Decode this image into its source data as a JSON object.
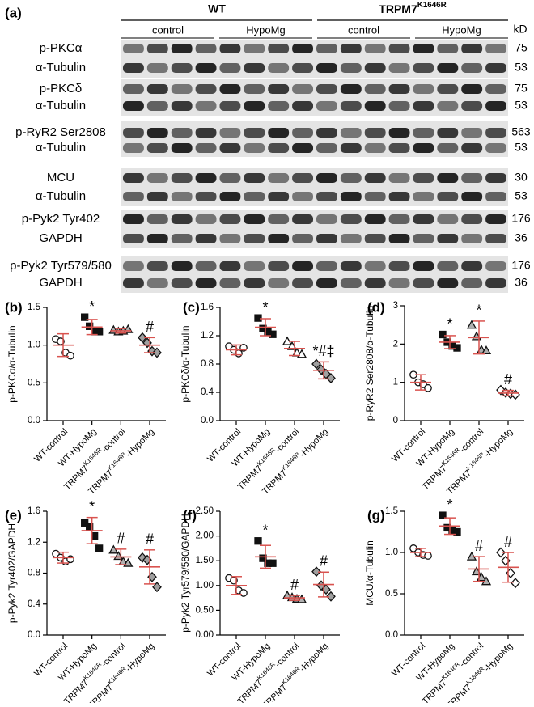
{
  "superscript": "K1646R",
  "blot": {
    "panel": "(a)",
    "unit": "kD",
    "groups": [
      {
        "name": "WT",
        "subgroups": [
          "control",
          "HypoMg"
        ]
      },
      {
        "name": "TRPM7K1646R",
        "subgroups": [
          "control",
          "HypoMg"
        ]
      }
    ],
    "rows": [
      {
        "label": "p-PKCα",
        "kd": 75
      },
      {
        "label": "α-Tubulin",
        "kd": 53
      },
      {
        "label": "p-PKCδ",
        "kd": 75
      },
      {
        "label": "α-Tubulin",
        "kd": 53
      },
      {
        "label": "p-RyR2 Ser2808",
        "kd": 563
      },
      {
        "label": "α-Tubulin",
        "kd": 53
      },
      {
        "label": "MCU",
        "kd": 30
      },
      {
        "label": "α-Tubulin",
        "kd": 53
      },
      {
        "label": "p-Pyk2 Tyr402",
        "kd": 176
      },
      {
        "label": "GAPDH",
        "kd": 36
      },
      {
        "label": "p-Pyk2 Tyr579/580",
        "kd": 176
      },
      {
        "label": "GAPDH",
        "kd": 36
      }
    ]
  },
  "chart_data": [
    {
      "type": "dotplot",
      "panel": "(b)",
      "y_label": "p-PKCα/α-Tubulin",
      "categories": [
        "WT-control",
        "WT-HypoMg",
        "TRPM7K1646R-control",
        "TRPM7K1646R-HypoMg"
      ],
      "means": [
        1.0,
        1.24,
        1.19,
        1.0
      ],
      "errors": [
        0.15,
        0.1,
        0.03,
        0.1
      ],
      "points": [
        [
          1.08,
          1.05,
          0.9,
          0.86
        ],
        [
          1.37,
          1.25,
          1.18,
          1.18
        ],
        [
          1.2,
          1.18,
          1.19,
          1.21
        ],
        [
          1.1,
          1.03,
          0.92,
          0.9
        ]
      ],
      "annotations": [
        null,
        "*",
        null,
        "#"
      ],
      "ylim": [
        0,
        1.5
      ],
      "yticks": [
        {
          "value": 0,
          "label": "0.0"
        },
        {
          "value": 0.5,
          "label": "0.5"
        },
        {
          "value": 1,
          "label": "1.0"
        },
        {
          "value": 1.5,
          "label": "1.5"
        }
      ],
      "markers": [
        "open-circle",
        "square",
        "triangle",
        "diamond"
      ],
      "marker_colors": [
        "#ffffff",
        "#111111",
        "#b0b0b0",
        "#a0a0a0"
      ],
      "error_color": "#d9534f"
    },
    {
      "type": "dotplot",
      "panel": "(c)",
      "y_label": "p-PKCδ/α-Tubulin",
      "categories": [
        "WT-control",
        "WT-HypoMg",
        "TRPM7K1646R-control",
        "TRPM7K1646R-HypoMg"
      ],
      "means": [
        1.0,
        1.32,
        1.02,
        0.71
      ],
      "errors": [
        0.07,
        0.12,
        0.1,
        0.12
      ],
      "points": [
        [
          1.05,
          1.0,
          0.95,
          1.03
        ],
        [
          1.45,
          1.3,
          1.25,
          1.22
        ],
        [
          1.12,
          1.05,
          0.96,
          0.94
        ],
        [
          0.8,
          0.72,
          0.66,
          0.6
        ]
      ],
      "annotations": [
        null,
        "*",
        null,
        "*#‡"
      ],
      "ylim": [
        0,
        1.6
      ],
      "yticks": [
        {
          "value": 0,
          "label": "0.0"
        },
        {
          "value": 0.4,
          "label": "0.4"
        },
        {
          "value": 0.8,
          "label": "0.8"
        },
        {
          "value": 1.2,
          "label": "1.2"
        },
        {
          "value": 1.6,
          "label": "1.6"
        }
      ],
      "markers": [
        "open-circle",
        "square",
        "open-triangle",
        "diamond"
      ],
      "marker_colors": [
        "#ffffff",
        "#111111",
        "#ffffff",
        "#a0a0a0"
      ],
      "error_color": "#d9534f"
    },
    {
      "type": "dotplot",
      "panel": "(d)",
      "y_label": "p-RyR2 Ser2808/α-Tubulin",
      "categories": [
        "WT-control",
        "WT-HypoMg",
        "TRPM7K1646R-control",
        "TRPM7K1646R-HypoMg"
      ],
      "means": [
        1.0,
        2.05,
        2.17,
        0.72
      ],
      "errors": [
        0.2,
        0.17,
        0.43,
        0.07
      ],
      "points": [
        [
          1.2,
          1.0,
          0.95,
          0.85
        ],
        [
          2.25,
          2.05,
          1.95,
          1.9
        ],
        [
          2.5,
          2.2,
          1.85,
          1.83
        ],
        [
          0.8,
          0.73,
          0.7,
          0.68
        ]
      ],
      "annotations": [
        null,
        "*",
        "*",
        "#"
      ],
      "ylim": [
        0,
        3
      ],
      "yticks": [
        0,
        1,
        2,
        3
      ],
      "markers": [
        "open-circle",
        "square",
        "triangle",
        "open-diamond"
      ],
      "marker_colors": [
        "#ffffff",
        "#111111",
        "#b0b0b0",
        "#ffffff"
      ],
      "error_color": "#d9534f"
    },
    {
      "type": "dotplot",
      "panel": "(e)",
      "y_label": "p-Pyk2 Tyr402/GAPDH",
      "categories": [
        "WT-control",
        "WT-HypoMg",
        "TRPM7K1646R-control",
        "TRPM7K1646R-HypoMg"
      ],
      "means": [
        1.0,
        1.35,
        1.01,
        0.88
      ],
      "errors": [
        0.07,
        0.17,
        0.1,
        0.22
      ],
      "points": [
        [
          1.05,
          1.0,
          0.95,
          0.98
        ],
        [
          1.45,
          1.4,
          1.28,
          1.12
        ],
        [
          1.1,
          1.02,
          0.95,
          0.93
        ],
        [
          1.0,
          0.97,
          0.75,
          0.62
        ]
      ],
      "annotations": [
        null,
        "*",
        "#",
        "#"
      ],
      "ylim": [
        0,
        1.6
      ],
      "yticks": [
        {
          "value": 0,
          "label": "0.0"
        },
        {
          "value": 0.4,
          "label": "0.4"
        },
        {
          "value": 0.8,
          "label": "0.8"
        },
        {
          "value": 1.2,
          "label": "1.2"
        },
        {
          "value": 1.6,
          "label": "1.6"
        }
      ],
      "markers": [
        "open-circle",
        "square",
        "triangle",
        "diamond"
      ],
      "marker_colors": [
        "#ffffff",
        "#111111",
        "#b0b0b0",
        "#a0a0a0"
      ],
      "error_color": "#d9534f"
    },
    {
      "type": "dotplot",
      "panel": "(f)",
      "y_label": "p-Pyk2 Tyr579/580/GAPDH",
      "categories": [
        "WT-control",
        "WT-HypoMg",
        "TRPM7K1646R-control",
        "TRPM7K1646R-HypoMg"
      ],
      "means": [
        1.0,
        1.58,
        0.75,
        1.02
      ],
      "errors": [
        0.18,
        0.23,
        0.05,
        0.25
      ],
      "points": [
        [
          1.15,
          1.1,
          0.9,
          0.85
        ],
        [
          1.9,
          1.55,
          1.45,
          1.45
        ],
        [
          0.8,
          0.76,
          0.73,
          0.72
        ],
        [
          1.28,
          1.0,
          0.92,
          0.78
        ]
      ],
      "annotations": [
        null,
        "*",
        "#",
        "#"
      ],
      "ylim": [
        0,
        2.5
      ],
      "yticks": [
        {
          "value": 0,
          "label": "0.00"
        },
        {
          "value": 0.5,
          "label": "0.50"
        },
        {
          "value": 1,
          "label": "1.00"
        },
        {
          "value": 1.5,
          "label": "1.50"
        },
        {
          "value": 2,
          "label": "2.00"
        },
        {
          "value": 2.5,
          "label": "2.50"
        }
      ],
      "markers": [
        "open-circle",
        "square",
        "triangle",
        "diamond"
      ],
      "marker_colors": [
        "#ffffff",
        "#111111",
        "#b0b0b0",
        "#a0a0a0"
      ],
      "error_color": "#d9534f"
    },
    {
      "type": "dotplot",
      "panel": "(g)",
      "y_label": "MCU/α-Tubulin",
      "categories": [
        "WT-control",
        "WT-HypoMg",
        "TRPM7K1646R-control",
        "TRPM7K1646R-HypoMg"
      ],
      "means": [
        1.0,
        1.32,
        0.8,
        0.82
      ],
      "errors": [
        0.05,
        0.1,
        0.15,
        0.18
      ],
      "points": [
        [
          1.05,
          1.0,
          0.97,
          0.96
        ],
        [
          1.45,
          1.3,
          1.27,
          1.25
        ],
        [
          0.95,
          0.77,
          0.7,
          0.65
        ],
        [
          1.0,
          0.9,
          0.75,
          0.63
        ]
      ],
      "annotations": [
        null,
        "*",
        "#",
        "#"
      ],
      "ylim": [
        0,
        1.5
      ],
      "yticks": [
        {
          "value": 0,
          "label": "0.0"
        },
        {
          "value": 0.5,
          "label": "0.5"
        },
        {
          "value": 1,
          "label": "1.0"
        },
        {
          "value": 1.5,
          "label": "1.5"
        }
      ],
      "markers": [
        "open-circle",
        "square",
        "triangle",
        "open-diamond"
      ],
      "marker_colors": [
        "#ffffff",
        "#111111",
        "#b0b0b0",
        "#ffffff"
      ],
      "error_color": "#d9534f"
    }
  ]
}
